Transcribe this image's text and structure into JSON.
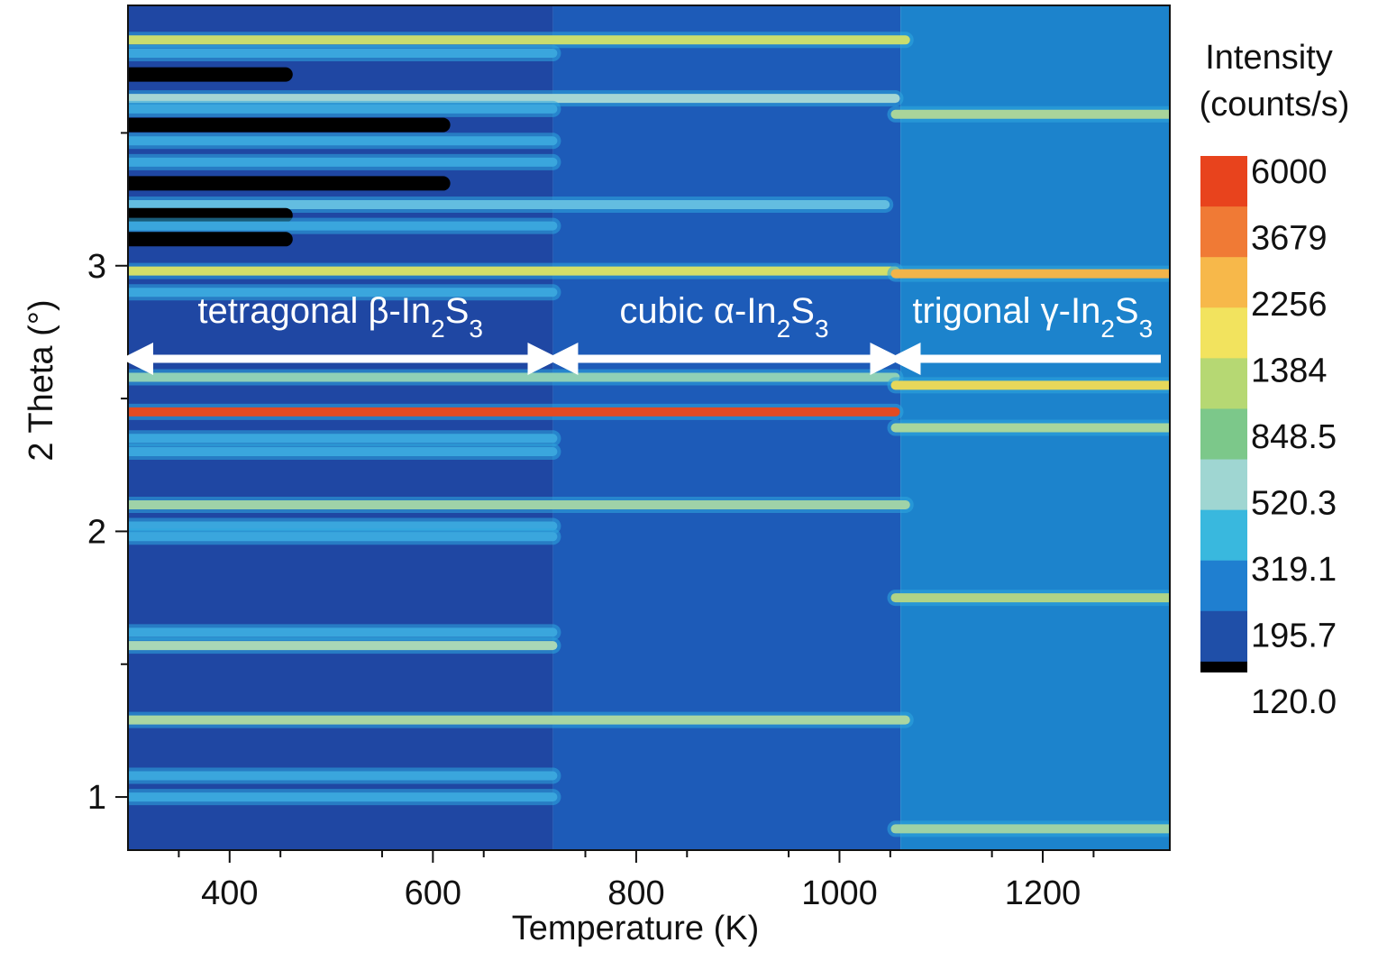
{
  "chart_data": {
    "type": "heatmap",
    "xlabel": "Temperature (K)",
    "ylabel": "2 Theta (°)",
    "xlim": [
      300,
      1325
    ],
    "ylim": [
      0.8,
      3.98
    ],
    "x_ticks": [
      400,
      600,
      800,
      1000,
      1200
    ],
    "y_ticks": [
      1,
      2,
      3
    ],
    "grid": false,
    "colorbar": {
      "title_line1": "Intensity",
      "title_line2": "(counts/s)",
      "labels": [
        "6000",
        "3679",
        "2256",
        "1384",
        "848.5",
        "520.3",
        "319.1",
        "195.7",
        "120.0"
      ],
      "colors": [
        "#e8431d",
        "#f07a35",
        "#f7b84a",
        "#f2e35e",
        "#b6d873",
        "#7cc88a",
        "#9fd6d2",
        "#39b8de",
        "#1f7fd0",
        "#1f4fa8",
        "#000000"
      ]
    },
    "phases": [
      {
        "label_main": "tetragonal β-In",
        "sub_a": "2",
        "mid": "S",
        "sub_b": "3",
        "x_start": 300,
        "x_end": 718
      },
      {
        "label_main": "cubic α-In",
        "sub_a": "2",
        "mid": "S",
        "sub_b": "3",
        "x_start": 718,
        "x_end": 1055
      },
      {
        "label_main": "trigonal γ-In",
        "sub_a": "2",
        "mid": "S",
        "sub_b": "3",
        "x_start": 1055,
        "x_end": 1325
      }
    ],
    "regions": [
      {
        "x_start": 300,
        "x_end": 718,
        "color": "#1f47a3"
      },
      {
        "x_start": 718,
        "x_end": 1060,
        "color": "#1d5bb8"
      },
      {
        "x_start": 1060,
        "x_end": 1325,
        "color": "#1c83cc"
      }
    ],
    "peaks": [
      {
        "x_start": 300,
        "x_end": 1065,
        "y": 3.85,
        "color": "#c9dd6e"
      },
      {
        "x_start": 300,
        "x_end": 718,
        "y": 3.8,
        "color": "#3aa6dd"
      },
      {
        "x_start": 300,
        "x_end": 455,
        "y": 3.72,
        "color": "#000000"
      },
      {
        "x_start": 300,
        "x_end": 1055,
        "y": 3.63,
        "color": "#a5d6d4"
      },
      {
        "x_start": 300,
        "x_end": 718,
        "y": 3.59,
        "color": "#3aa6dd"
      },
      {
        "x_start": 1055,
        "x_end": 1325,
        "y": 3.57,
        "color": "#a9d49a"
      },
      {
        "x_start": 300,
        "x_end": 610,
        "y": 3.53,
        "color": "#000000"
      },
      {
        "x_start": 300,
        "x_end": 718,
        "y": 3.47,
        "color": "#3aa6dd"
      },
      {
        "x_start": 300,
        "x_end": 718,
        "y": 3.39,
        "color": "#3aa6dd"
      },
      {
        "x_start": 300,
        "x_end": 610,
        "y": 3.31,
        "color": "#000000"
      },
      {
        "x_start": 300,
        "x_end": 1045,
        "y": 3.23,
        "color": "#63bde0"
      },
      {
        "x_start": 300,
        "x_end": 455,
        "y": 3.19,
        "color": "#000000"
      },
      {
        "x_start": 300,
        "x_end": 718,
        "y": 3.15,
        "color": "#3aa6dd"
      },
      {
        "x_start": 300,
        "x_end": 455,
        "y": 3.1,
        "color": "#000000"
      },
      {
        "x_start": 300,
        "x_end": 1055,
        "y": 2.98,
        "color": "#d3df68"
      },
      {
        "x_start": 1055,
        "x_end": 1325,
        "y": 2.97,
        "color": "#f1b44a"
      },
      {
        "x_start": 300,
        "x_end": 718,
        "y": 2.9,
        "color": "#3aa6dd"
      },
      {
        "x_start": 300,
        "x_end": 1055,
        "y": 2.58,
        "color": "#8fd0b6"
      },
      {
        "x_start": 1055,
        "x_end": 1325,
        "y": 2.55,
        "color": "#e7d75a"
      },
      {
        "x_start": 300,
        "x_end": 1055,
        "y": 2.45,
        "color": "#e24a22"
      },
      {
        "x_start": 1055,
        "x_end": 1325,
        "y": 2.39,
        "color": "#a8d69c"
      },
      {
        "x_start": 300,
        "x_end": 718,
        "y": 2.35,
        "color": "#3aa6dd"
      },
      {
        "x_start": 300,
        "x_end": 718,
        "y": 2.3,
        "color": "#3aa6dd"
      },
      {
        "x_start": 300,
        "x_end": 1065,
        "y": 2.1,
        "color": "#9fd2a8"
      },
      {
        "x_start": 300,
        "x_end": 718,
        "y": 2.02,
        "color": "#3aa6dd"
      },
      {
        "x_start": 300,
        "x_end": 718,
        "y": 1.98,
        "color": "#3aa6dd"
      },
      {
        "x_start": 1055,
        "x_end": 1325,
        "y": 1.75,
        "color": "#b0d486"
      },
      {
        "x_start": 300,
        "x_end": 718,
        "y": 1.62,
        "color": "#3aa6dd"
      },
      {
        "x_start": 300,
        "x_end": 718,
        "y": 1.57,
        "color": "#a9d7b6"
      },
      {
        "x_start": 300,
        "x_end": 1065,
        "y": 1.29,
        "color": "#a9d6a2"
      },
      {
        "x_start": 300,
        "x_end": 718,
        "y": 1.08,
        "color": "#3aa6dd"
      },
      {
        "x_start": 300,
        "x_end": 718,
        "y": 1.0,
        "color": "#3aa6dd"
      },
      {
        "x_start": 1055,
        "x_end": 1325,
        "y": 0.88,
        "color": "#9ed2a6"
      }
    ]
  }
}
